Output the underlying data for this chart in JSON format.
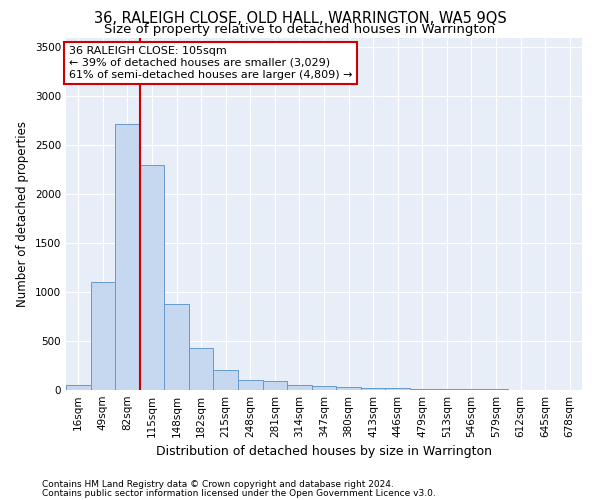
{
  "title": "36, RALEIGH CLOSE, OLD HALL, WARRINGTON, WA5 9QS",
  "subtitle": "Size of property relative to detached houses in Warrington",
  "xlabel": "Distribution of detached houses by size in Warrington",
  "ylabel": "Number of detached properties",
  "bar_values": [
    50,
    1100,
    2720,
    2300,
    880,
    430,
    200,
    100,
    90,
    55,
    40,
    30,
    25,
    18,
    15,
    10,
    8,
    6,
    5,
    4
  ],
  "bin_labels": [
    "16sqm",
    "49sqm",
    "82sqm",
    "115sqm",
    "148sqm",
    "182sqm",
    "215sqm",
    "248sqm",
    "281sqm",
    "314sqm",
    "347sqm",
    "380sqm",
    "413sqm",
    "446sqm",
    "479sqm",
    "513sqm",
    "546sqm",
    "579sqm",
    "612sqm",
    "645sqm",
    "678sqm"
  ],
  "bar_color": "#c5d8f0",
  "bar_edge_color": "#6699cc",
  "vline_color": "#cc0000",
  "annotation_text": "36 RALEIGH CLOSE: 105sqm\n← 39% of detached houses are smaller (3,029)\n61% of semi-detached houses are larger (4,809) →",
  "annotation_box_color": "#ffffff",
  "annotation_box_edge_color": "#cc0000",
  "ylim": [
    0,
    3600
  ],
  "yticks": [
    0,
    500,
    1000,
    1500,
    2000,
    2500,
    3000,
    3500
  ],
  "background_color": "#e8eef8",
  "footer_line1": "Contains HM Land Registry data © Crown copyright and database right 2024.",
  "footer_line2": "Contains public sector information licensed under the Open Government Licence v3.0.",
  "title_fontsize": 10.5,
  "subtitle_fontsize": 9.5,
  "xlabel_fontsize": 9,
  "ylabel_fontsize": 8.5,
  "annotation_fontsize": 8,
  "tick_fontsize": 7.5,
  "footer_fontsize": 6.5
}
